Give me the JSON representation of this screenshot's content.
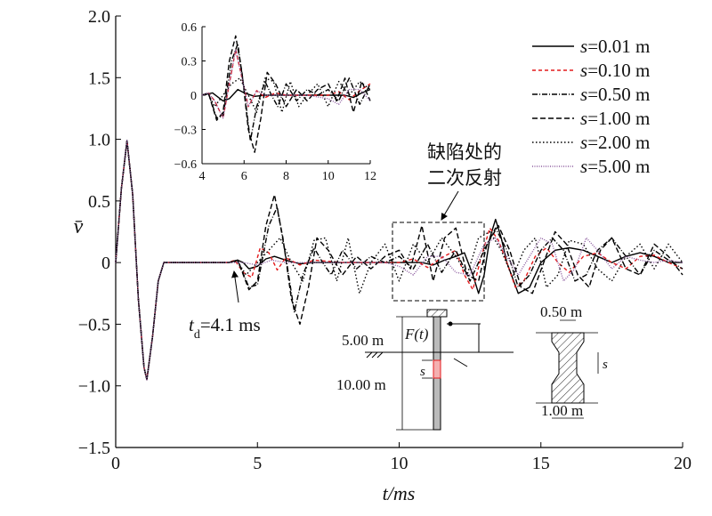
{
  "chart_data": [
    {
      "type": "line",
      "role": "main",
      "xlabel": "t/ms",
      "ylabel": "v̄",
      "xlim": [
        0,
        20
      ],
      "ylim": [
        -1.5,
        2.0
      ],
      "xticks": [
        0,
        5,
        10,
        15,
        20
      ],
      "yticks": [
        -1.5,
        -1.0,
        -0.5,
        0,
        0.5,
        1.0,
        1.5,
        2.0
      ],
      "xtick_labels": [
        "0",
        "5",
        "10",
        "15",
        "20"
      ],
      "ytick_labels": [
        "−1.5",
        "−1.0",
        "−0.5",
        "0",
        "0.5",
        "1.0",
        "1.5",
        "2.0"
      ],
      "grid": false,
      "legend_position": "top-right",
      "series": [
        {
          "name": "s=0.01 m",
          "color": "#000000",
          "dash": "solid",
          "x": [
            0,
            0.2,
            0.4,
            0.6,
            0.8,
            1.0,
            1.1,
            1.3,
            1.5,
            1.7,
            2.0,
            3.0,
            4.0,
            4.1,
            4.3,
            4.5,
            4.7,
            5.0,
            5.3,
            5.6,
            6.0,
            6.5,
            7.0,
            8.0,
            9.0,
            10.0,
            10.8,
            11.2,
            11.6,
            12.0,
            12.3,
            12.6,
            12.8,
            13.0,
            13.2,
            13.4,
            13.6,
            13.8,
            14.2,
            14.6,
            15.0,
            15.5,
            16.0,
            16.5,
            17.0,
            17.5,
            18.0,
            18.5,
            19.0,
            19.5,
            20.0
          ],
          "y": [
            0,
            0.6,
            0.99,
            0.55,
            -0.3,
            -0.85,
            -0.95,
            -0.6,
            -0.15,
            0,
            0,
            0,
            0,
            0.01,
            0.02,
            0,
            -0.05,
            -0.03,
            0.03,
            0.05,
            0.02,
            -0.01,
            0,
            0,
            0,
            0,
            0,
            -0.02,
            0.02,
            0.05,
            0.08,
            -0.1,
            -0.25,
            -0.1,
            0.2,
            0.35,
            0.2,
            0,
            -0.25,
            -0.2,
            0,
            0.1,
            0.12,
            0.1,
            0.05,
            0,
            0.05,
            0.08,
            0.05,
            0,
            0
          ]
        },
        {
          "name": "s=0.10 m",
          "color": "#e31a1c",
          "dash": "4,3",
          "x": [
            0,
            0.2,
            0.4,
            0.6,
            0.8,
            1.0,
            1.1,
            1.3,
            1.5,
            1.7,
            2.0,
            3.0,
            4.0,
            4.2,
            4.5,
            4.8,
            5.1,
            5.4,
            5.7,
            6.0,
            6.5,
            7.0,
            8.0,
            9.0,
            10.0,
            10.5,
            11.0,
            11.5,
            12.0,
            12.3,
            12.6,
            12.9,
            13.2,
            13.5,
            13.8,
            14.1,
            14.4,
            14.8,
            15.2,
            15.6,
            16.0,
            16.5,
            17.0,
            17.5,
            18.0,
            18.5,
            19.0,
            19.5,
            20.0
          ],
          "y": [
            0,
            0.6,
            0.99,
            0.55,
            -0.3,
            -0.85,
            -0.95,
            -0.6,
            -0.15,
            0,
            0,
            0,
            0,
            0.02,
            -0.08,
            -0.12,
            0.12,
            0.08,
            -0.06,
            0.04,
            -0.02,
            0.02,
            0,
            0,
            0,
            0.03,
            -0.04,
            0.04,
            0.1,
            -0.1,
            -0.22,
            0.05,
            0.28,
            0.18,
            0,
            -0.2,
            -0.15,
            0.05,
            0.12,
            0,
            -0.08,
            0.05,
            0.08,
            0,
            -0.05,
            0.05,
            0.06,
            0,
            -0.05
          ]
        },
        {
          "name": "s=0.50 m",
          "color": "#000000",
          "dash": "6,2,1,2",
          "x": [
            0,
            0.2,
            0.4,
            0.6,
            0.8,
            1.0,
            1.1,
            1.3,
            1.5,
            1.7,
            2.0,
            3.0,
            4.0,
            4.3,
            4.7,
            5.0,
            5.4,
            5.7,
            6.0,
            6.3,
            6.6,
            7.0,
            7.3,
            7.6,
            8.0,
            8.5,
            9.0,
            9.5,
            10.0,
            10.5,
            11.0,
            11.5,
            12.0,
            12.5,
            13.0,
            13.4,
            13.8,
            14.2,
            14.6,
            15.0,
            15.4,
            15.8,
            16.2,
            16.6,
            17.0,
            17.5,
            18.0,
            18.5,
            19.0,
            19.5,
            20.0
          ],
          "y": [
            0,
            0.6,
            0.99,
            0.55,
            -0.3,
            -0.85,
            -0.95,
            -0.6,
            -0.15,
            0,
            0,
            0,
            0,
            0.02,
            -0.2,
            -0.18,
            0.3,
            0.45,
            0.05,
            -0.4,
            -0.1,
            0.12,
            0,
            -0.1,
            0.1,
            -0.05,
            0.05,
            0,
            0.05,
            -0.05,
            0.15,
            -0.08,
            0.1,
            -0.15,
            0.1,
            0.28,
            0.1,
            -0.2,
            -0.1,
            0.1,
            0.2,
            0.1,
            -0.15,
            -0.1,
            0.1,
            0.2,
            0.05,
            -0.1,
            0.1,
            0.02,
            -0.05
          ]
        },
        {
          "name": "s=1.00 m",
          "color": "#000000",
          "dash": "6,3",
          "x": [
            0,
            0.2,
            0.4,
            0.6,
            0.8,
            1.0,
            1.1,
            1.3,
            1.5,
            1.7,
            2.0,
            3.0,
            4.0,
            4.3,
            4.7,
            5.0,
            5.3,
            5.6,
            5.9,
            6.2,
            6.5,
            6.8,
            7.1,
            7.5,
            8.0,
            8.5,
            9.0,
            9.5,
            10.0,
            10.4,
            10.8,
            11.2,
            11.6,
            12.0,
            12.4,
            12.8,
            13.1,
            13.5,
            13.9,
            14.3,
            14.7,
            15.1,
            15.5,
            15.9,
            16.3,
            16.7,
            17.1,
            17.5,
            18.0,
            18.5,
            19.0,
            19.5,
            20.0
          ],
          "y": [
            0,
            0.6,
            0.99,
            0.55,
            -0.3,
            -0.85,
            -0.95,
            -0.6,
            -0.15,
            0,
            0,
            0,
            0,
            0.02,
            -0.22,
            -0.15,
            0.3,
            0.55,
            0.2,
            -0.3,
            -0.5,
            -0.2,
            0.2,
            0.1,
            -0.1,
            0.05,
            -0.05,
            0.05,
            0.1,
            -0.05,
            0.3,
            -0.15,
            0.2,
            0.28,
            -0.1,
            -0.15,
            0.15,
            0.3,
            0.1,
            -0.2,
            -0.25,
            0,
            0.25,
            0.15,
            -0.1,
            -0.2,
            0.1,
            0.2,
            -0.05,
            -0.1,
            0.15,
            0.05,
            -0.1
          ]
        },
        {
          "name": "s=2.00 m",
          "color": "#000000",
          "dash": "1.5,2.5",
          "x": [
            0,
            0.2,
            0.4,
            0.6,
            0.8,
            1.0,
            1.1,
            1.3,
            1.5,
            1.7,
            2.0,
            3.0,
            4.0,
            4.3,
            4.6,
            5.0,
            5.4,
            5.8,
            6.2,
            6.6,
            7.0,
            7.4,
            7.8,
            8.2,
            8.6,
            9.0,
            9.5,
            10.0,
            10.5,
            11.0,
            11.5,
            12.0,
            12.4,
            12.8,
            13.2,
            13.6,
            14.0,
            14.4,
            14.8,
            15.2,
            15.6,
            16.0,
            16.5,
            17.0,
            17.5,
            18.0,
            18.5,
            19.0,
            19.5,
            20.0
          ],
          "y": [
            0,
            0.6,
            0.99,
            0.55,
            -0.3,
            -0.85,
            -0.95,
            -0.6,
            -0.15,
            0,
            0,
            0,
            0,
            0.01,
            -0.1,
            0,
            0.1,
            0.2,
            0,
            -0.15,
            0.18,
            0.2,
            -0.15,
            0.2,
            -0.25,
            0,
            0.15,
            -0.15,
            0.15,
            0,
            0.2,
            0.05,
            -0.1,
            0.2,
            0.25,
            0.1,
            -0.12,
            0.1,
            0.2,
            -0.2,
            -0.1,
            0.18,
            0.15,
            -0.05,
            -0.15,
            0.05,
            0.15,
            -0.05,
            0.15,
            0
          ]
        },
        {
          "name": "s=5.00 m",
          "color": "#8b5a9e",
          "dash": "1,1.5",
          "x": [
            0,
            0.2,
            0.4,
            0.6,
            0.8,
            1.0,
            1.1,
            1.3,
            1.5,
            1.7,
            2.0,
            3.0,
            4.0,
            4.5,
            5.0,
            5.5,
            6.0,
            6.5,
            7.0,
            7.5,
            8.0,
            8.5,
            9.0,
            9.5,
            10.0,
            10.5,
            11.0,
            11.5,
            12.0,
            12.5,
            13.0,
            13.4,
            13.8,
            14.2,
            14.6,
            15.0,
            15.4,
            15.8,
            16.2,
            16.6,
            17.0,
            17.5,
            18.0,
            18.5,
            19.0,
            19.5,
            20.0
          ],
          "y": [
            0,
            0.6,
            0.99,
            0.55,
            -0.3,
            -0.85,
            -0.95,
            -0.6,
            -0.15,
            0,
            0,
            0,
            0,
            0,
            -0.02,
            0.02,
            0,
            0,
            0,
            0,
            0,
            0,
            0,
            0,
            -0.03,
            -0.1,
            0.05,
            0.05,
            -0.08,
            -0.1,
            0.15,
            0.2,
            0.05,
            -0.1,
            0.05,
            0.2,
            0.15,
            -0.15,
            -0.05,
            0.2,
            0.1,
            -0.05,
            0.05,
            0.02,
            0,
            0.02,
            0
          ]
        }
      ]
    },
    {
      "type": "line",
      "role": "inset",
      "xlim": [
        4,
        12
      ],
      "ylim": [
        -0.6,
        0.6
      ],
      "xticks": [
        4,
        6,
        8,
        10,
        12
      ],
      "yticks": [
        -0.6,
        -0.3,
        0,
        0.3,
        0.6
      ],
      "xtick_labels": [
        "4",
        "6",
        "8",
        "10",
        "12"
      ],
      "ytick_labels": [
        "−0.6",
        "−0.3",
        "0",
        "0.3",
        "0.6"
      ],
      "series": [
        {
          "name": "s=0.01 m",
          "color": "#000000",
          "dash": "solid",
          "x": [
            4,
            4.5,
            5.0,
            5.3,
            5.7,
            6.0,
            6.5,
            7.0,
            8.0,
            9.0,
            10.0,
            10.8,
            11.2,
            11.6,
            12.0
          ],
          "y": [
            0,
            0.02,
            -0.05,
            -0.03,
            0.05,
            0.02,
            -0.01,
            0,
            0,
            0,
            0,
            0,
            -0.02,
            0.02,
            0.05
          ]
        },
        {
          "name": "s=0.10 m",
          "color": "#e31a1c",
          "dash": "4,3",
          "x": [
            4,
            4.3,
            4.6,
            5.0,
            5.3,
            5.6,
            5.9,
            6.2,
            6.6,
            7.0,
            7.5,
            8.0,
            9.0,
            10.0,
            10.5,
            11.0,
            11.5,
            12.0
          ],
          "y": [
            0,
            0.02,
            -0.05,
            -0.2,
            0.1,
            0.4,
            0.15,
            -0.1,
            0.04,
            -0.02,
            0.02,
            0,
            0,
            0,
            0.03,
            -0.04,
            0.04,
            0.1
          ]
        },
        {
          "name": "s=0.50 m",
          "color": "#000000",
          "dash": "6,2,1,2",
          "x": [
            4,
            4.3,
            4.7,
            5.0,
            5.4,
            5.7,
            6.0,
            6.3,
            6.6,
            7.0,
            7.3,
            7.6,
            8.0,
            8.5,
            9.0,
            9.5,
            10.0,
            10.5,
            11.0,
            11.5,
            12.0
          ],
          "y": [
            0,
            0.02,
            -0.2,
            -0.18,
            0.3,
            0.45,
            0.05,
            -0.4,
            -0.1,
            0.12,
            0,
            -0.1,
            0.1,
            -0.05,
            0.05,
            0,
            0.05,
            -0.05,
            0.15,
            -0.08,
            0.1
          ]
        },
        {
          "name": "s=1.00 m",
          "color": "#000000",
          "dash": "6,3",
          "x": [
            4,
            4.3,
            4.7,
            5.0,
            5.3,
            5.6,
            5.9,
            6.2,
            6.5,
            6.8,
            7.1,
            7.5,
            8.0,
            8.5,
            9.0,
            9.5,
            10.0,
            10.4,
            10.8,
            11.2,
            11.6,
            12.0
          ],
          "y": [
            0,
            0.02,
            -0.22,
            -0.15,
            0.3,
            0.52,
            0.2,
            -0.3,
            -0.5,
            -0.2,
            0.2,
            0.1,
            -0.1,
            0.05,
            -0.05,
            0.05,
            0.1,
            -0.05,
            0.15,
            -0.15,
            0.12,
            -0.05
          ]
        },
        {
          "name": "s=2.00 m",
          "color": "#000000",
          "dash": "1.5,2.5",
          "x": [
            4,
            4.3,
            4.6,
            5.0,
            5.4,
            5.8,
            6.2,
            6.6,
            7.0,
            7.4,
            7.8,
            8.2,
            8.6,
            9.0,
            9.5,
            10.0,
            10.5,
            11.0,
            11.5,
            12.0
          ],
          "y": [
            0,
            0.01,
            -0.1,
            0,
            0.1,
            0.15,
            0,
            -0.15,
            0.15,
            0.12,
            -0.15,
            0.12,
            -0.1,
            0,
            0.1,
            -0.1,
            0.12,
            0,
            0.12,
            0.05
          ]
        },
        {
          "name": "s=5.00 m",
          "color": "#8b5a9e",
          "dash": "1,1.5",
          "x": [
            4,
            4.3,
            4.6,
            5.0,
            5.3,
            5.6,
            5.9,
            6.2,
            6.6,
            7.0,
            8.0,
            9.0,
            10.0,
            10.5,
            11.0,
            11.5,
            12.0
          ],
          "y": [
            0,
            0.02,
            -0.05,
            -0.2,
            0.1,
            0.4,
            0.15,
            -0.1,
            0.04,
            0,
            0,
            0,
            -0.03,
            -0.08,
            0.05,
            0.05,
            -0.05
          ]
        }
      ]
    }
  ],
  "annotations": {
    "td_label": "t",
    "td_sub": "d",
    "td_value": "=4.1 ms",
    "defect_line1": "缺陷处的",
    "defect_line2": "二次反射"
  },
  "diagram": {
    "force_label": "F(t)",
    "depth_above": "5.00 m",
    "depth_below": "10.00 m",
    "s_label": "s",
    "section_top": "0.50 m",
    "section_bottom": "1.00 m",
    "section_s": "s"
  }
}
